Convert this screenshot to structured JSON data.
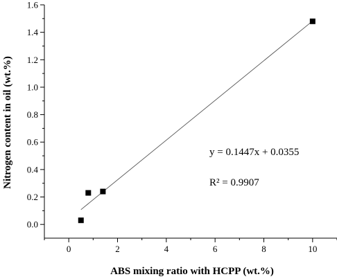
{
  "chart_data": {
    "type": "scatter",
    "title": "",
    "xlabel": "ABS mixing ratio with HCPP (wt.%)",
    "ylabel": "Nitrogen content in oil (wt.%)",
    "xlim": [
      -1,
      11
    ],
    "ylim": [
      -0.1,
      1.6
    ],
    "xticks": [
      0,
      2,
      4,
      6,
      8,
      10
    ],
    "yticks": [
      0.0,
      0.2,
      0.4,
      0.6,
      0.8,
      1.0,
      1.2,
      1.4,
      1.6
    ],
    "xtick_labels": [
      "0",
      "2",
      "4",
      "6",
      "8",
      "10"
    ],
    "ytick_labels": [
      "0.0",
      "0.2",
      "0.4",
      "0.6",
      "0.8",
      "1.0",
      "1.2",
      "1.4",
      "1.6"
    ],
    "grid": false,
    "series": [
      {
        "marker": "square",
        "color": "#000000",
        "points": [
          {
            "x": 0.5,
            "y": 0.03
          },
          {
            "x": 0.8,
            "y": 0.23
          },
          {
            "x": 1.4,
            "y": 0.24
          },
          {
            "x": 10.0,
            "y": 1.48
          }
        ]
      }
    ],
    "fit_line": {
      "slope": 0.1447,
      "intercept": 0.0355,
      "x_range": [
        0.5,
        10.0
      ],
      "color": "#555555"
    },
    "annotations": [
      {
        "text": "y = 0.1447x + 0.0355"
      },
      {
        "text": "R² = 0.9907"
      }
    ]
  }
}
